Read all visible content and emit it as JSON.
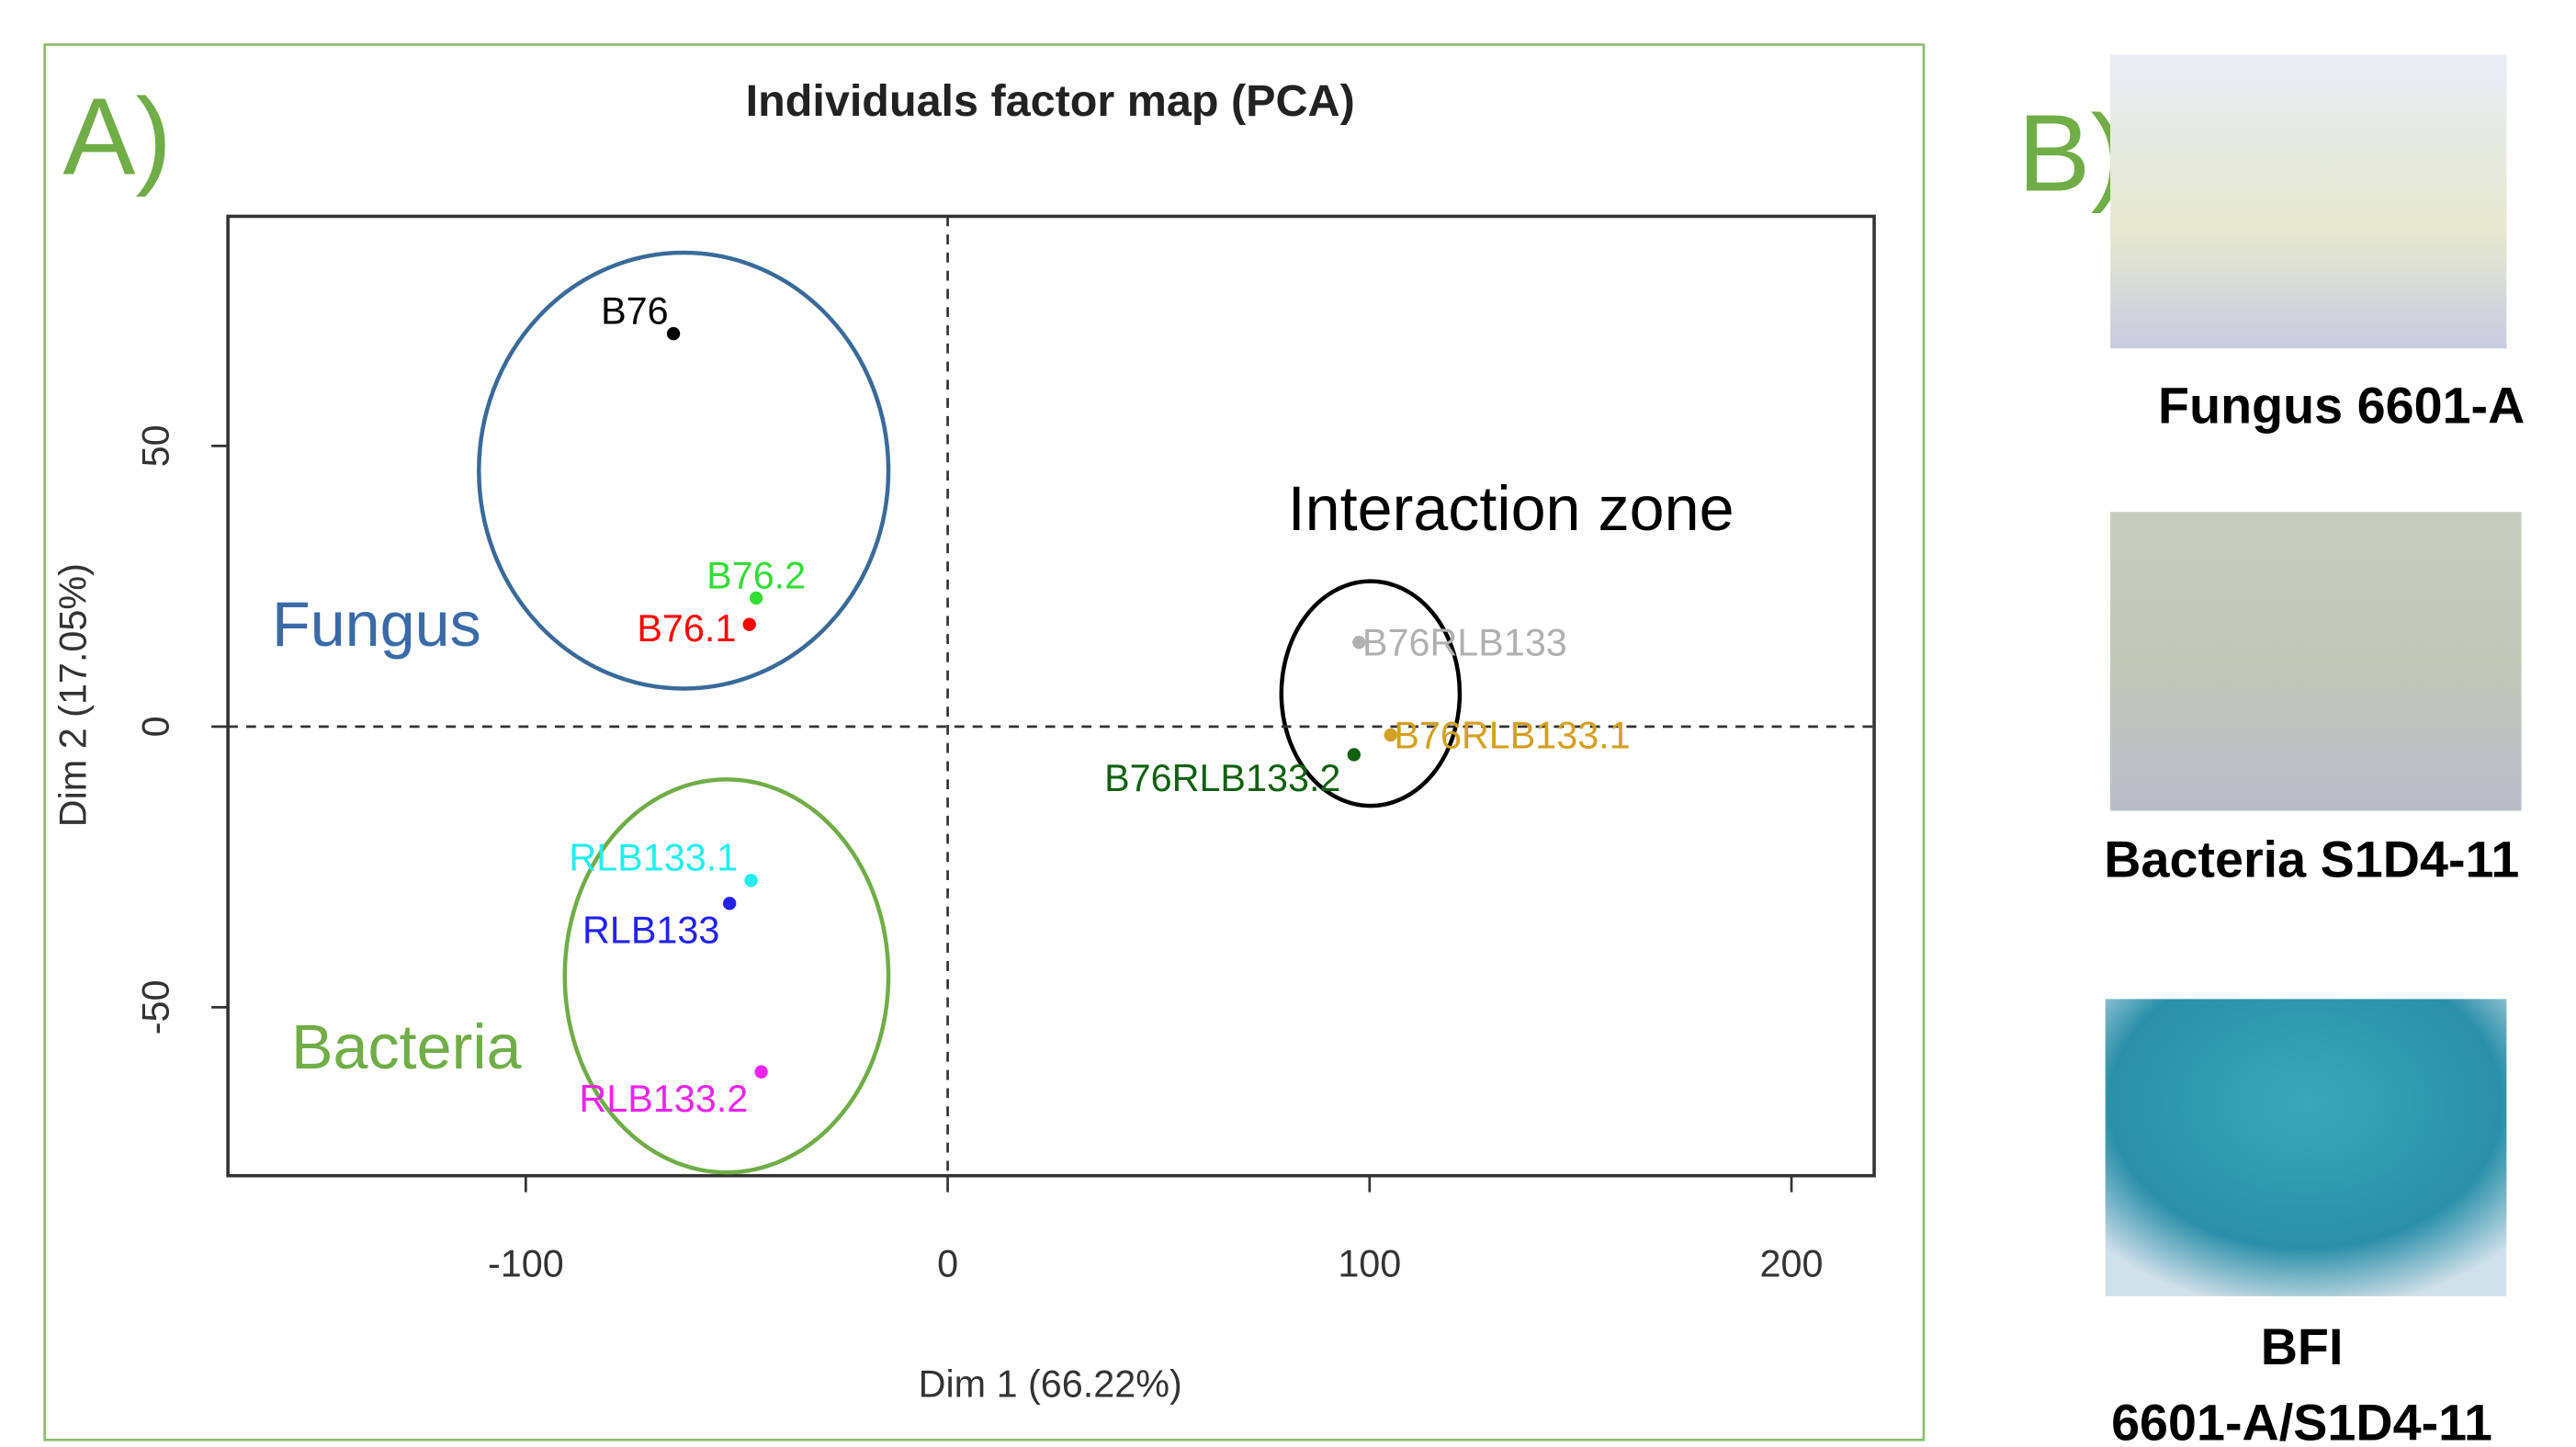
{
  "chart_data": {
    "type": "scatter",
    "title": "Individuals factor map (PCA)",
    "panel_label": "A)",
    "x_label": "Dim 1 (66.22%)",
    "y_label": "Dim 2 (17.05%)",
    "annotations": [
      "Fungus",
      "Bacteria",
      "Interaction zone"
    ],
    "labels": [
      "B76",
      "B76.2",
      "B76.1",
      "RLB133.1",
      "RLB133",
      "RLB133.2",
      "B76RLB133",
      "B76RLB133.1",
      "B76RLB133.2"
    ],
    "colors": [
      "#000000",
      "#33dd33",
      "#ff0000",
      "#22eeee",
      "#2222ee",
      "#ee22ee",
      "#b0b0b0",
      "#d4a020",
      "#106010"
    ],
    "x": [
      -65,
      -45.4,
      -47,
      -46.6,
      -51.7,
      -44.2,
      97.5,
      105,
      96.3
    ],
    "y": [
      70,
      22.9,
      18.2,
      -27.4,
      -31.5,
      -61.5,
      15,
      -1.5,
      -5
    ],
    "xlim": [
      -170.6,
      219.6
    ],
    "ylim": [
      -80,
      90.9
    ],
    "xticks": [
      -100,
      0,
      100,
      200
    ],
    "yticks": [
      -50,
      0,
      50
    ]
  },
  "panel_b": {
    "label": "B)",
    "captions": [
      "Fungus 6601-A",
      "Bacteria S1D4-11",
      "BFI",
      "6601-A/S1D4-11"
    ]
  }
}
